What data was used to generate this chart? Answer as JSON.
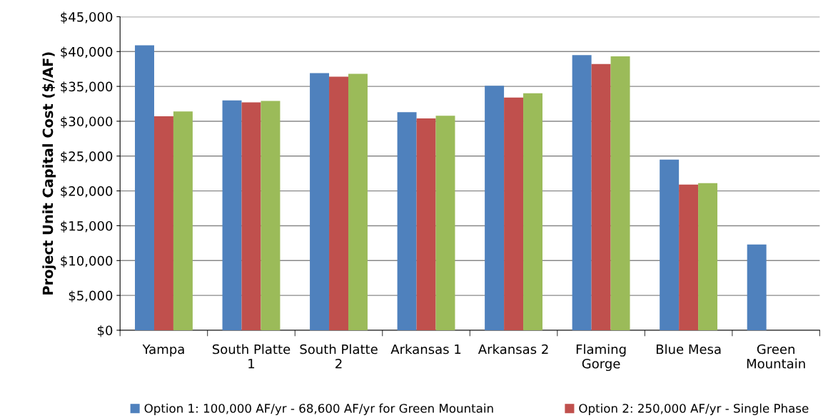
{
  "chart_data": {
    "type": "bar",
    "ylabel": "Project Unit Capital Cost ($/AF)",
    "categories": [
      "Yampa",
      "South Platte 1",
      "South Platte 2",
      "Arkansas 1",
      "Arkansas 2",
      "Flaming Gorge",
      "Blue Mesa",
      "Green Mountain"
    ],
    "series": [
      {
        "name": "Option 1: 100,000 AF/yr - 68,600 AF/yr for Green Mountain",
        "color": "#4f81bd",
        "values": [
          40900,
          33000,
          36900,
          31300,
          35100,
          39500,
          24500,
          12300
        ]
      },
      {
        "name": "Option 2: 250,000 AF/yr - Single Phase",
        "color": "#c0504d",
        "values": [
          30700,
          32700,
          36400,
          30400,
          33400,
          38200,
          20900,
          null
        ]
      },
      {
        "color": "#9bbb59",
        "values": [
          31400,
          32900,
          36800,
          30800,
          34000,
          39300,
          21100,
          null
        ]
      }
    ],
    "ylim": [
      0,
      45000
    ],
    "yticks": [
      {
        "value": 0,
        "label": "$0"
      },
      {
        "value": 5000,
        "label": "$5,000"
      },
      {
        "value": 10000,
        "label": "$10,000"
      },
      {
        "value": 15000,
        "label": "$15,000"
      },
      {
        "value": 20000,
        "label": "$20,000"
      },
      {
        "value": 25000,
        "label": "$25,000"
      },
      {
        "value": 30000,
        "label": "$30,000"
      },
      {
        "value": 35000,
        "label": "$35,000"
      },
      {
        "value": 40000,
        "label": "$40,000"
      },
      {
        "value": 45000,
        "label": "$45,000"
      }
    ],
    "grid": "y",
    "legend": "bottom"
  }
}
